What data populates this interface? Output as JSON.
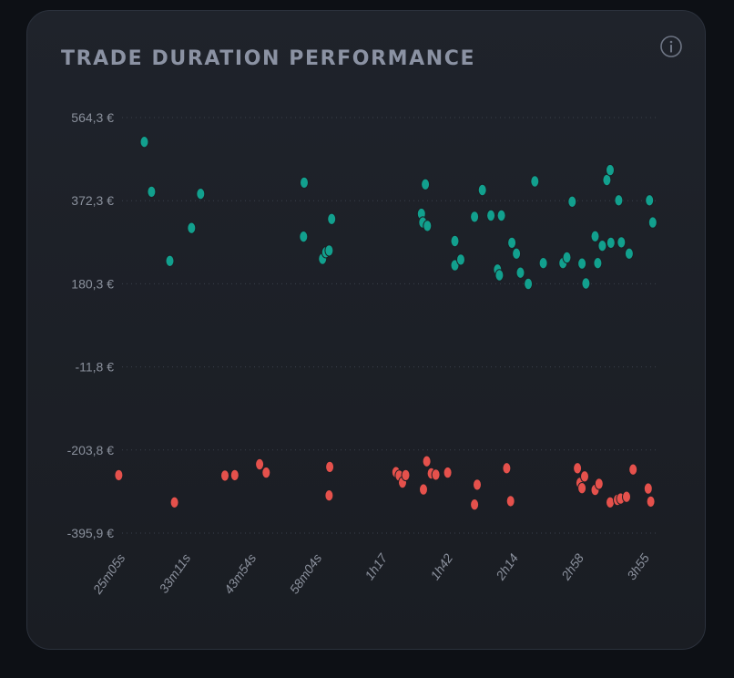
{
  "colors": {
    "win": "#12a08e",
    "loss": "#e5514c"
  },
  "icons": {
    "info": "info-circle-icon"
  },
  "chart_data": {
    "type": "scatter",
    "title": "TRADE DURATION PERFORMANCE",
    "xlabel": "",
    "ylabel": "",
    "grid": true,
    "y_ticks": [
      "564,3 €",
      "372,3 €",
      "180,3 €",
      "-11,8 €",
      "-203,8 €",
      "-395,9 €"
    ],
    "x_ticks": [
      "25m05s",
      "33m11s",
      "43m54s",
      "58m04s",
      "1h17",
      "1h42",
      "2h14",
      "2h58",
      "3h55"
    ],
    "x_axis_note": "non-linear duration axis; x values given in tick-interval units (0 = 25m05s, 8 = 3h55)",
    "xlim": [
      0,
      8.2
    ],
    "ylim": [
      -395.9,
      564.3
    ],
    "series": [
      {
        "color": "#12a08e",
        "points": [
          [
            0.34,
            508
          ],
          [
            0.45,
            393
          ],
          [
            0.73,
            233
          ],
          [
            1.06,
            309
          ],
          [
            1.2,
            388
          ],
          [
            2.78,
            414
          ],
          [
            2.77,
            289
          ],
          [
            3.06,
            238
          ],
          [
            3.11,
            253
          ],
          [
            3.16,
            257
          ],
          [
            3.2,
            330
          ],
          [
            4.57,
            342
          ],
          [
            4.59,
            322
          ],
          [
            4.63,
            410
          ],
          [
            4.66,
            314
          ],
          [
            5.08,
            279
          ],
          [
            5.08,
            223
          ],
          [
            5.17,
            236
          ],
          [
            5.38,
            335
          ],
          [
            5.5,
            397
          ],
          [
            5.63,
            338
          ],
          [
            5.79,
            338
          ],
          [
            5.73,
            213
          ],
          [
            5.76,
            200
          ],
          [
            5.95,
            275
          ],
          [
            6.02,
            250
          ],
          [
            6.08,
            206
          ],
          [
            6.2,
            180
          ],
          [
            6.3,
            417
          ],
          [
            6.43,
            228
          ],
          [
            6.73,
            228
          ],
          [
            6.79,
            241
          ],
          [
            6.87,
            370
          ],
          [
            7.02,
            227
          ],
          [
            7.08,
            181
          ],
          [
            7.22,
            290
          ],
          [
            7.26,
            228
          ],
          [
            7.33,
            268
          ],
          [
            7.4,
            420
          ],
          [
            7.45,
            443
          ],
          [
            7.46,
            275
          ],
          [
            7.58,
            373
          ],
          [
            7.62,
            276
          ],
          [
            7.74,
            250
          ],
          [
            8.05,
            373
          ],
          [
            8.1,
            322
          ]
        ]
      },
      {
        "color": "#e5514c",
        "points": [
          [
            -0.05,
            -262
          ],
          [
            0.8,
            -325
          ],
          [
            1.57,
            -263
          ],
          [
            1.72,
            -262
          ],
          [
            2.1,
            -237
          ],
          [
            2.2,
            -256
          ],
          [
            3.17,
            -243
          ],
          [
            3.16,
            -309
          ],
          [
            4.18,
            -255
          ],
          [
            4.23,
            -263
          ],
          [
            4.28,
            -279
          ],
          [
            4.33,
            -262
          ],
          [
            4.6,
            -295
          ],
          [
            4.65,
            -230
          ],
          [
            4.72,
            -258
          ],
          [
            4.79,
            -261
          ],
          [
            4.97,
            -256
          ],
          [
            5.38,
            -330
          ],
          [
            5.42,
            -284
          ],
          [
            5.87,
            -246
          ],
          [
            5.93,
            -322
          ],
          [
            6.95,
            -246
          ],
          [
            6.99,
            -280
          ],
          [
            7.02,
            -292
          ],
          [
            7.06,
            -265
          ],
          [
            7.22,
            -296
          ],
          [
            7.28,
            -282
          ],
          [
            7.45,
            -325
          ],
          [
            7.56,
            -319
          ],
          [
            7.61,
            -316
          ],
          [
            7.7,
            -312
          ],
          [
            7.8,
            -249
          ],
          [
            8.03,
            -293
          ],
          [
            8.07,
            -323
          ]
        ]
      }
    ]
  }
}
